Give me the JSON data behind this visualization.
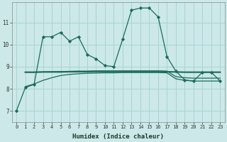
{
  "background_color": "#cce8e8",
  "grid_color": "#a8d4d4",
  "line_color": "#1a6b5a",
  "xlabel": "Humidex (Indice chaleur)",
  "xlim": [
    -0.5,
    23.5
  ],
  "ylim": [
    6.5,
    11.9
  ],
  "yticks": [
    7,
    8,
    9,
    10,
    11
  ],
  "xticks": [
    0,
    1,
    2,
    3,
    4,
    5,
    6,
    7,
    8,
    9,
    10,
    11,
    12,
    13,
    14,
    15,
    16,
    17,
    18,
    19,
    20,
    21,
    22,
    23
  ],
  "line1_x": [
    0,
    1,
    2,
    3,
    4,
    5,
    6,
    7,
    8,
    9,
    10,
    11,
    12,
    13,
    14,
    15,
    16,
    17,
    18,
    19,
    20,
    21,
    22,
    23
  ],
  "line1_y": [
    7.0,
    8.05,
    8.2,
    10.35,
    10.35,
    10.55,
    10.15,
    10.35,
    9.55,
    9.35,
    9.05,
    9.0,
    10.25,
    11.55,
    11.65,
    11.65,
    11.25,
    9.45,
    8.8,
    8.4,
    8.35,
    8.75,
    8.75,
    8.35
  ],
  "line2_x": [
    1,
    2,
    3,
    4,
    5,
    6,
    7,
    8,
    9,
    10,
    11,
    12,
    13,
    14,
    15,
    16,
    17,
    18,
    19,
    20,
    21,
    22,
    23
  ],
  "line2_y": [
    8.75,
    8.75,
    8.76,
    8.76,
    8.76,
    8.77,
    8.77,
    8.77,
    8.78,
    8.78,
    8.78,
    8.78,
    8.78,
    8.78,
    8.78,
    8.78,
    8.77,
    8.76,
    8.75,
    8.75,
    8.75,
    8.75,
    8.75
  ],
  "line3_x": [
    1,
    2,
    3,
    4,
    5,
    6,
    7,
    8,
    9,
    10,
    11,
    12,
    13,
    14,
    15,
    16,
    17,
    18,
    19,
    20,
    21,
    22,
    23
  ],
  "line3_y": [
    8.1,
    8.22,
    8.38,
    8.5,
    8.6,
    8.65,
    8.68,
    8.7,
    8.71,
    8.72,
    8.72,
    8.73,
    8.73,
    8.73,
    8.73,
    8.73,
    8.72,
    8.45,
    8.38,
    8.35,
    8.35,
    8.35,
    8.35
  ],
  "line4_x": [
    1,
    2,
    3,
    4,
    5,
    6,
    7,
    8,
    9,
    10,
    11,
    12,
    13,
    14,
    15,
    16,
    17,
    18,
    19,
    20,
    21,
    22,
    23
  ],
  "line4_y": [
    8.75,
    8.75,
    8.76,
    8.77,
    8.78,
    8.79,
    8.8,
    8.8,
    8.81,
    8.81,
    8.81,
    8.81,
    8.81,
    8.81,
    8.81,
    8.81,
    8.8,
    8.55,
    8.5,
    8.48,
    8.48,
    8.48,
    8.48
  ]
}
